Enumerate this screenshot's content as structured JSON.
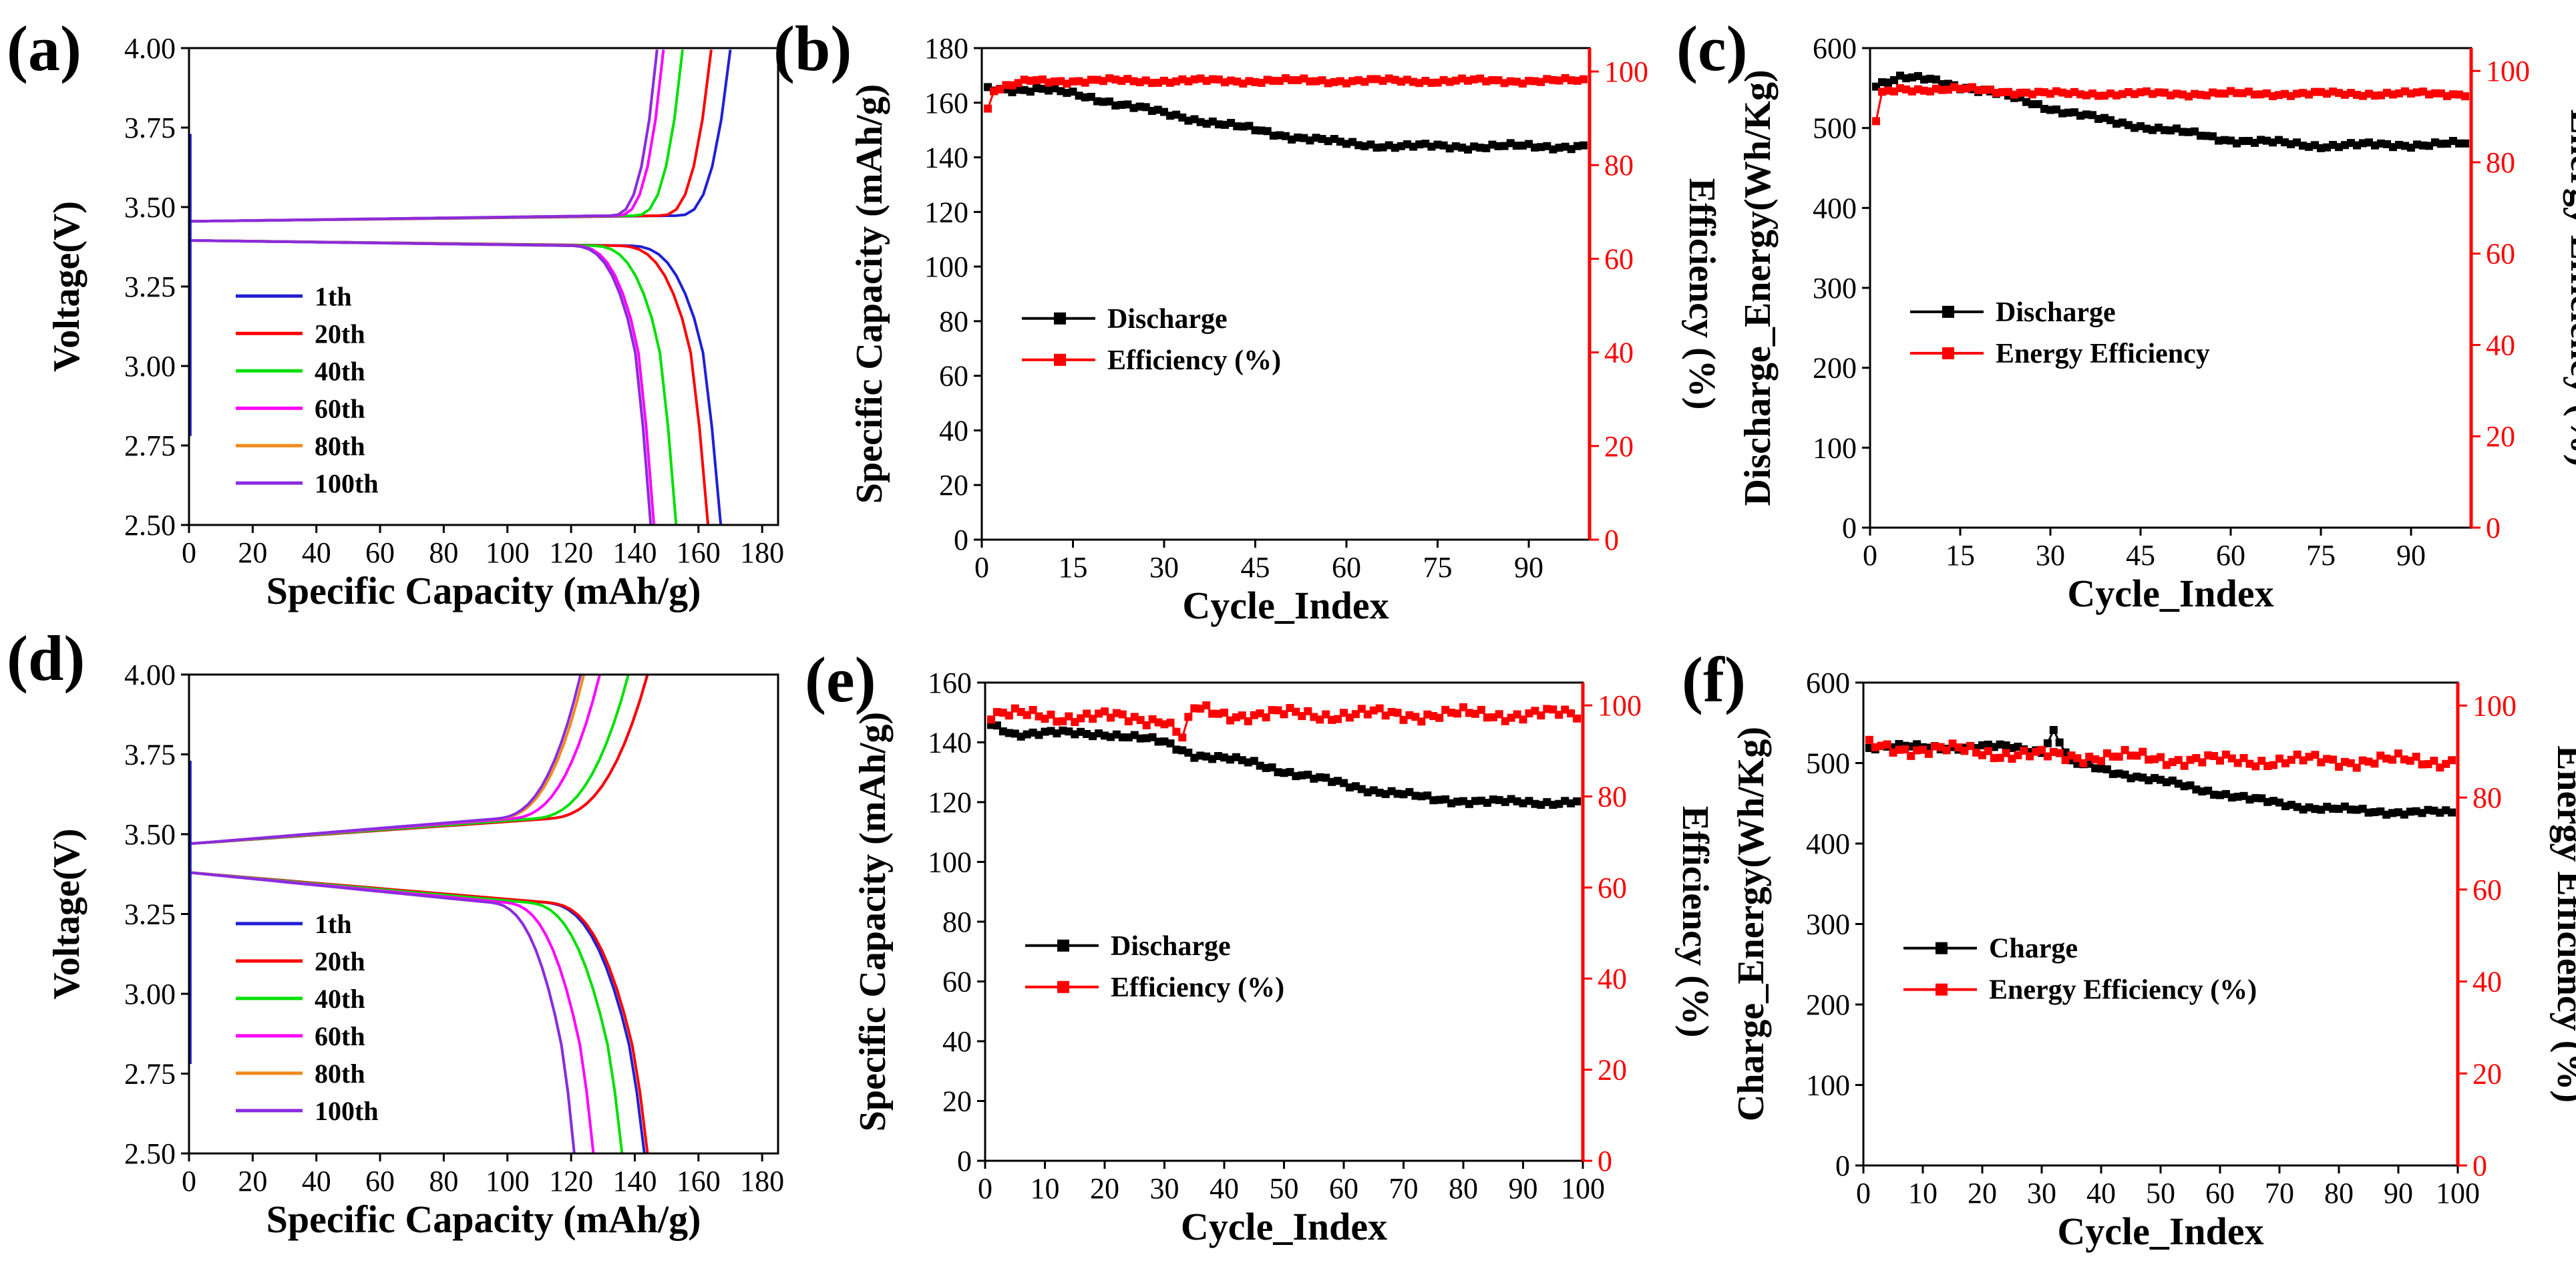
{
  "colors": {
    "black": "#000000",
    "red": "#ff0000",
    "blue": "#1f1fd6",
    "green": "#00e000",
    "magenta": "#ff00ff",
    "orange": "#f08a1c",
    "purple": "#8a2be2"
  },
  "chart_data": [
    {
      "panel": "(a)",
      "type": "line",
      "xlabel": "Specific Capacity (mAh/g)",
      "ylabel": "Voltage(V)",
      "xlim": [
        0,
        185
      ],
      "ylim": [
        2.5,
        4.0
      ],
      "xticks": [
        0,
        20,
        40,
        60,
        80,
        100,
        120,
        140,
        160,
        180
      ],
      "yticks": [
        2.5,
        2.75,
        3.0,
        3.25,
        3.5,
        3.75,
        4.0
      ],
      "ytick_labels": [
        "2.50",
        "2.75",
        "3.00",
        "3.25",
        "3.50",
        "3.75",
        "4.00"
      ],
      "legend_position": "lower-left",
      "series": [
        {
          "name": "1th",
          "color": "#1f1fd6",
          "discharge_capacity": 167,
          "charge_capacity": 170
        },
        {
          "name": "20th",
          "color": "#ff0000",
          "discharge_capacity": 163,
          "charge_capacity": 164
        },
        {
          "name": "40th",
          "color": "#00e000",
          "discharge_capacity": 153,
          "charge_capacity": 155
        },
        {
          "name": "60th",
          "color": "#ff00ff",
          "discharge_capacity": 146,
          "charge_capacity": 149
        },
        {
          "name": "80th",
          "color": "#f08a1c",
          "discharge_capacity": 145,
          "charge_capacity": 147
        },
        {
          "name": "100th",
          "color": "#8a2be2",
          "discharge_capacity": 145,
          "charge_capacity": 147
        }
      ]
    },
    {
      "panel": "(b)",
      "type": "scatter",
      "xlabel": "Cycle_Index",
      "ylabel": "Specific Capacity (mAh/g)",
      "y2label": "Efficiency (%)",
      "xlim": [
        0,
        100
      ],
      "ylim": [
        0,
        180
      ],
      "y2lim": [
        0,
        105
      ],
      "xticks": [
        0,
        15,
        30,
        45,
        60,
        75,
        90
      ],
      "yticks": [
        0,
        20,
        40,
        60,
        80,
        100,
        120,
        140,
        160,
        180
      ],
      "y2ticks": [
        0,
        20,
        40,
        60,
        80,
        100
      ],
      "legend_position": "middle-left",
      "series": [
        {
          "name": "Discharge",
          "color": "#000000",
          "axis": "left",
          "keypoints": [
            [
              1,
              165
            ],
            [
              10,
              165
            ],
            [
              20,
              161
            ],
            [
              30,
              156
            ],
            [
              40,
              152
            ],
            [
              50,
              148
            ],
            [
              60,
              145
            ],
            [
              70,
              144
            ],
            [
              80,
              144
            ],
            [
              99,
              144
            ]
          ]
        },
        {
          "name": "Efficiency (%)",
          "color": "#ff0000",
          "axis": "right",
          "keypoints": [
            [
              1,
              92
            ],
            [
              2,
              96
            ],
            [
              5,
              97
            ],
            [
              8,
              98
            ],
            [
              99,
              98
            ]
          ]
        }
      ]
    },
    {
      "panel": "(c)",
      "type": "scatter",
      "xlabel": "Cycle_Index",
      "ylabel": "Discharge_Energy(Wh/Kg)",
      "y2label": "Energy Efficiency (%)",
      "xlim": [
        0,
        100
      ],
      "ylim": [
        0,
        600
      ],
      "y2lim": [
        0,
        105
      ],
      "xticks": [
        0,
        15,
        30,
        45,
        60,
        75,
        90
      ],
      "yticks": [
        0,
        100,
        200,
        300,
        400,
        500,
        600
      ],
      "y2ticks": [
        0,
        20,
        40,
        60,
        80,
        100
      ],
      "legend_position": "middle-left",
      "series": [
        {
          "name": "Discharge",
          "color": "#000000",
          "axis": "left",
          "keypoints": [
            [
              1,
              555
            ],
            [
              5,
              563
            ],
            [
              10,
              560
            ],
            [
              20,
              545
            ],
            [
              30,
              525
            ],
            [
              40,
              508
            ],
            [
              50,
              497
            ],
            [
              60,
              485
            ],
            [
              75,
              478
            ],
            [
              99,
              480
            ]
          ]
        },
        {
          "name": "Energy Efficiency",
          "color": "#ff0000",
          "axis": "right",
          "keypoints": [
            [
              1,
              89
            ],
            [
              2,
              95
            ],
            [
              5,
              96
            ],
            [
              15,
              96
            ],
            [
              30,
              95
            ],
            [
              99,
              95
            ]
          ]
        }
      ]
    },
    {
      "panel": "(d)",
      "type": "line",
      "xlabel": "Specific Capacity (mAh/g)",
      "ylabel": "Voltage(V)",
      "xlim": [
        0,
        185
      ],
      "ylim": [
        2.5,
        4.0
      ],
      "xticks": [
        0,
        20,
        40,
        60,
        80,
        100,
        120,
        140,
        160,
        180
      ],
      "yticks": [
        2.5,
        2.75,
        3.0,
        3.25,
        3.5,
        3.75,
        4.0
      ],
      "ytick_labels": [
        "2.50",
        "2.75",
        "3.00",
        "3.25",
        "3.50",
        "3.75",
        "4.00"
      ],
      "legend_position": "lower-left",
      "series": [
        {
          "name": "1th",
          "color": "#1f1fd6",
          "discharge_capacity": 143,
          "charge_capacity": 144
        },
        {
          "name": "20th",
          "color": "#ff0000",
          "discharge_capacity": 144,
          "charge_capacity": 144
        },
        {
          "name": "40th",
          "color": "#00e000",
          "discharge_capacity": 136,
          "charge_capacity": 138
        },
        {
          "name": "60th",
          "color": "#ff00ff",
          "discharge_capacity": 127,
          "charge_capacity": 129
        },
        {
          "name": "80th",
          "color": "#f08a1c",
          "discharge_capacity": 121,
          "charge_capacity": 124
        },
        {
          "name": "100th",
          "color": "#8a2be2",
          "discharge_capacity": 121,
          "charge_capacity": 123
        }
      ]
    },
    {
      "panel": "(e)",
      "type": "scatter",
      "xlabel": "Cycle_Index",
      "ylabel": "Specific Capacity (mAh/g)",
      "y2label": "Efficiency (%)",
      "xlim": [
        0,
        100
      ],
      "ylim": [
        0,
        160
      ],
      "y2lim": [
        0,
        105
      ],
      "xticks": [
        0,
        10,
        20,
        30,
        40,
        50,
        60,
        70,
        80,
        90,
        100
      ],
      "yticks": [
        0,
        20,
        40,
        60,
        80,
        100,
        120,
        140,
        160
      ],
      "y2ticks": [
        0,
        20,
        40,
        60,
        80,
        100
      ],
      "legend_position": "middle-left",
      "series": [
        {
          "name": "Discharge",
          "color": "#000000",
          "axis": "left",
          "keypoints": [
            [
              1,
              146
            ],
            [
              5,
              143
            ],
            [
              20,
              143
            ],
            [
              30,
              140
            ],
            [
              35,
              136
            ],
            [
              45,
              133
            ],
            [
              55,
              128
            ],
            [
              65,
              124
            ],
            [
              75,
              121
            ],
            [
              85,
              120
            ],
            [
              99,
              120
            ]
          ]
        },
        {
          "name": "Efficiency (%)",
          "color": "#ff0000",
          "axis": "right",
          "keypoints": [
            [
              1,
              98
            ],
            [
              30,
              97
            ],
            [
              33,
              93
            ],
            [
              35,
              99
            ],
            [
              40,
              98
            ],
            [
              99,
              98
            ]
          ]
        }
      ]
    },
    {
      "panel": "(f)",
      "type": "scatter",
      "xlabel": "Cycle_Index",
      "ylabel": "Charge_Energy(Wh/Kg)",
      "y2label": "Energy Efficiency (%)",
      "xlim": [
        0,
        100
      ],
      "ylim": [
        0,
        600
      ],
      "y2lim": [
        0,
        105
      ],
      "xticks": [
        0,
        10,
        20,
        30,
        40,
        50,
        60,
        70,
        80,
        90,
        100
      ],
      "yticks": [
        0,
        100,
        200,
        300,
        400,
        500,
        600
      ],
      "y2ticks": [
        0,
        20,
        40,
        60,
        80,
        100
      ],
      "legend_position": "middle-left",
      "series": [
        {
          "name": "Charge",
          "color": "#000000",
          "axis": "left",
          "keypoints": [
            [
              1,
              520
            ],
            [
              25,
              520
            ],
            [
              30,
              515
            ],
            [
              32,
              540
            ],
            [
              35,
              500
            ],
            [
              45,
              485
            ],
            [
              55,
              470
            ],
            [
              65,
              455
            ],
            [
              75,
              445
            ],
            [
              85,
              440
            ],
            [
              99,
              438
            ]
          ]
        },
        {
          "name": "Energy Efficiency (%)",
          "color": "#ff0000",
          "axis": "right",
          "keypoints": [
            [
              1,
              91
            ],
            [
              20,
              90
            ],
            [
              30,
              89
            ],
            [
              40,
              89
            ],
            [
              60,
              88
            ],
            [
              80,
              88
            ],
            [
              99,
              88
            ]
          ]
        }
      ]
    }
  ]
}
